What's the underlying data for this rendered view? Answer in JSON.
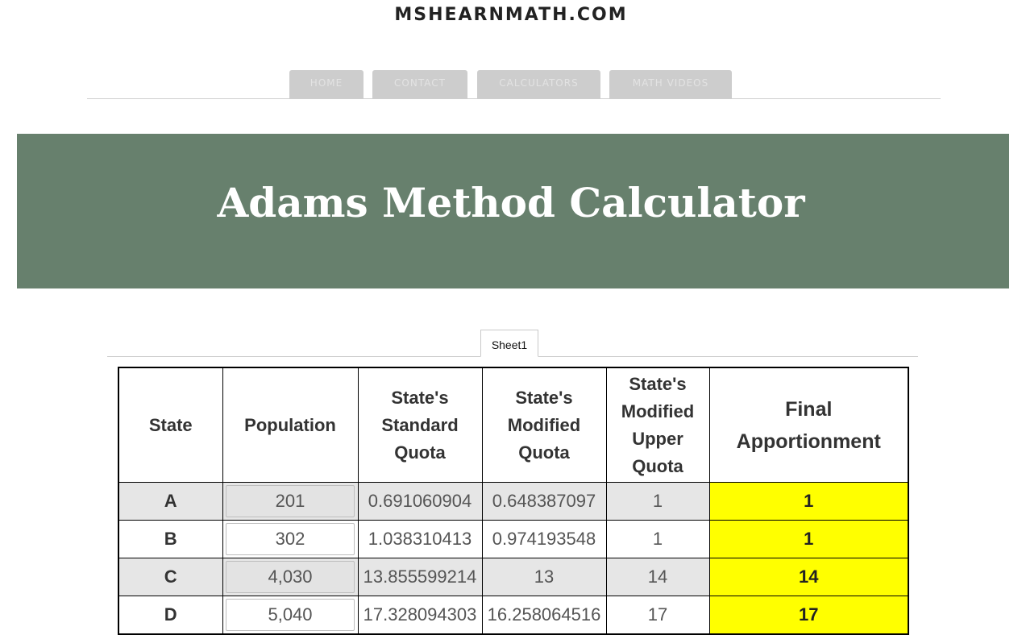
{
  "site": {
    "title": "MSHEARNMATH.COM"
  },
  "nav": {
    "items": [
      {
        "label": "HOME"
      },
      {
        "label": "CONTACT"
      },
      {
        "label": "CALCULATORS"
      },
      {
        "label": "MATH VIDEOS"
      }
    ]
  },
  "banner": {
    "title": "Adams Method Calculator"
  },
  "sheet": {
    "tab_label": "Sheet1"
  },
  "table": {
    "headers": {
      "state": "State",
      "population": "Population",
      "standard_quota": "State's Standard Quota",
      "modified_quota": "State's Modified Quota",
      "modified_upper_quota": "State's Modified Upper Quota",
      "final_apportionment": "Final Apportionment"
    },
    "rows": [
      {
        "state": "A",
        "population": "201",
        "standard_quota": "0.691060904",
        "modified_quota": "0.648387097",
        "upper_quota": "1",
        "final": "1"
      },
      {
        "state": "B",
        "population": "302",
        "standard_quota": "1.038310413",
        "modified_quota": "0.974193548",
        "upper_quota": "1",
        "final": "1"
      },
      {
        "state": "C",
        "population": "4,030",
        "standard_quota": "13.855599214",
        "modified_quota": "13",
        "upper_quota": "14",
        "final": "14"
      },
      {
        "state": "D",
        "population": "5,040",
        "standard_quota": "17.328094303",
        "modified_quota": "16.258064516",
        "upper_quota": "17",
        "final": "17"
      }
    ]
  },
  "colors": {
    "banner_bg": "#67806d",
    "final_highlight": "#ffff00",
    "nav_tab_bg": "#cdcdcd",
    "shaded_row": "#e6e6e6"
  }
}
